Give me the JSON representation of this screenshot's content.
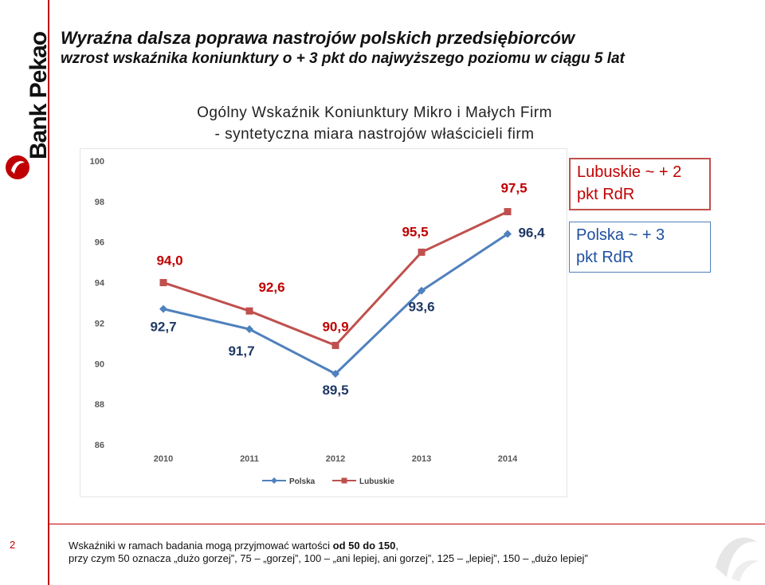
{
  "brand": {
    "name": "Bank Pekao",
    "logo_color": "#c00000"
  },
  "slide": {
    "page_number": "2"
  },
  "title": {
    "main": "Wyraźna dalsza poprawa nastrojów polskich przedsiębiorców",
    "sub": "wzrost wskaźnika koniunktury o + 3 pkt do najwyższego poziomu w ciągu 5 lat"
  },
  "chart_heading": {
    "line1": "Ogólny Wskaźnik Koniunktury Mikro i Małych Firm",
    "line2": "- syntetyczna miara nastrojów właścicieli firm"
  },
  "callouts": {
    "lubuskie_line1": "Lubuskie ~ + 2",
    "lubuskie_line2": "pkt RdR",
    "polska_line1": "Polska ~ + 3",
    "polska_line2": "pkt RdR"
  },
  "footnote": {
    "line1_pre": "Wskaźniki w ramach badania mogą przyjmować wartości ",
    "line1_bold": "od 50 do 150",
    "line1_post": ",",
    "line2": "przy czym  50 oznacza „dużo gorzej”, 75 – „gorzej”, 100 – „ani lepiej, ani gorzej”, 125 – „lepiej”, 150 – „dużo lepiej”"
  },
  "chart_data": {
    "type": "line",
    "categories": [
      "2010",
      "2011",
      "2012",
      "2013",
      "2014"
    ],
    "series": [
      {
        "name": "Polska",
        "values": [
          92.7,
          91.7,
          89.5,
          93.6,
          96.4
        ],
        "labels": [
          "92,7",
          "91,7",
          "89,5",
          "93,6",
          "96,4"
        ],
        "color": "#4f81bd",
        "marker": "diamond"
      },
      {
        "name": "Lubuskie",
        "values": [
          94.0,
          92.6,
          90.9,
          95.5,
          97.5
        ],
        "labels": [
          "94,0",
          "92,6",
          "90,9",
          "95,5",
          "97,5"
        ],
        "color": "#c0504d",
        "marker": "square"
      }
    ],
    "yticks": [
      "100",
      "98",
      "96",
      "94",
      "92",
      "90",
      "88",
      "86"
    ],
    "ylim": [
      86,
      100
    ],
    "grid": false,
    "legend": "bottom",
    "label_color": "#c00000"
  }
}
